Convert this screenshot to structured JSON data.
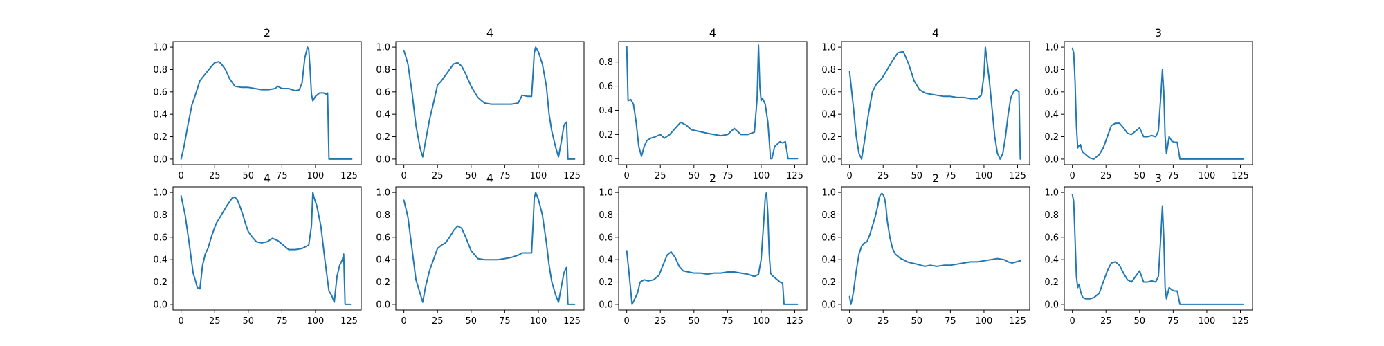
{
  "figure": {
    "background": "#ffffff",
    "line_color": "#1f77b4"
  },
  "chart_data": [
    {
      "type": "line",
      "title": "2",
      "xlim": [
        -6,
        134
      ],
      "ylim": [
        -0.05,
        1.05
      ],
      "xticks": [
        0,
        25,
        50,
        75,
        100,
        125
      ],
      "yticks": [
        0.0,
        0.2,
        0.4,
        0.6,
        0.8,
        1.0
      ],
      "x": [
        0,
        2,
        5,
        8,
        10,
        14,
        18,
        22,
        25,
        28,
        30,
        33,
        36,
        40,
        45,
        50,
        55,
        60,
        65,
        70,
        72,
        75,
        80,
        85,
        88,
        90,
        92,
        94,
        95,
        96,
        97,
        98,
        100,
        103,
        106,
        108,
        109,
        110,
        115,
        120,
        125,
        127
      ],
      "y": [
        0.0,
        0.1,
        0.3,
        0.48,
        0.55,
        0.7,
        0.76,
        0.82,
        0.86,
        0.87,
        0.85,
        0.8,
        0.72,
        0.65,
        0.64,
        0.64,
        0.63,
        0.62,
        0.62,
        0.63,
        0.65,
        0.63,
        0.63,
        0.61,
        0.62,
        0.68,
        0.9,
        1.0,
        0.98,
        0.8,
        0.58,
        0.52,
        0.56,
        0.59,
        0.59,
        0.58,
        0.59,
        0.0,
        0.0,
        0.0,
        0.0,
        0.0
      ]
    },
    {
      "type": "line",
      "title": "4",
      "xlim": [
        -6,
        134
      ],
      "ylim": [
        -0.05,
        1.05
      ],
      "xticks": [
        0,
        25,
        50,
        75,
        100,
        125
      ],
      "yticks": [
        0.0,
        0.2,
        0.4,
        0.6,
        0.8,
        1.0
      ],
      "x": [
        0,
        3,
        6,
        9,
        12,
        14,
        16,
        19,
        22,
        25,
        28,
        31,
        34,
        37,
        40,
        43,
        46,
        50,
        55,
        60,
        65,
        70,
        75,
        80,
        85,
        88,
        92,
        95,
        96,
        97,
        98,
        100,
        103,
        106,
        108,
        110,
        113,
        115,
        117,
        119,
        120,
        121,
        122,
        123,
        125,
        127
      ],
      "y": [
        0.97,
        0.85,
        0.6,
        0.3,
        0.1,
        0.02,
        0.15,
        0.35,
        0.5,
        0.66,
        0.7,
        0.75,
        0.8,
        0.85,
        0.86,
        0.83,
        0.76,
        0.65,
        0.55,
        0.5,
        0.49,
        0.49,
        0.49,
        0.49,
        0.5,
        0.57,
        0.56,
        0.56,
        0.75,
        0.95,
        1.0,
        0.96,
        0.85,
        0.65,
        0.4,
        0.25,
        0.1,
        0.02,
        0.15,
        0.3,
        0.32,
        0.33,
        0.0,
        0.0,
        0.0,
        0.0
      ]
    },
    {
      "type": "line",
      "title": "4",
      "xlim": [
        -6,
        134
      ],
      "ylim": [
        -0.05,
        0.97
      ],
      "xticks": [
        0,
        25,
        50,
        75,
        100,
        125
      ],
      "yticks": [
        0.0,
        0.2,
        0.4,
        0.6,
        0.8
      ],
      "x": [
        0,
        1,
        3,
        5,
        7,
        9,
        11,
        13,
        15,
        18,
        21,
        25,
        28,
        32,
        36,
        40,
        44,
        48,
        52,
        56,
        60,
        65,
        70,
        75,
        80,
        85,
        90,
        95,
        97,
        98,
        99,
        100,
        101,
        103,
        105,
        107,
        108,
        110,
        112,
        114,
        116,
        118,
        120,
        122,
        125,
        127
      ],
      "y": [
        0.93,
        0.48,
        0.49,
        0.45,
        0.3,
        0.1,
        0.02,
        0.1,
        0.15,
        0.17,
        0.18,
        0.2,
        0.17,
        0.2,
        0.25,
        0.3,
        0.28,
        0.24,
        0.23,
        0.22,
        0.21,
        0.2,
        0.19,
        0.2,
        0.25,
        0.2,
        0.2,
        0.22,
        0.5,
        0.94,
        0.6,
        0.48,
        0.5,
        0.45,
        0.3,
        0.0,
        0.0,
        0.1,
        0.12,
        0.14,
        0.13,
        0.14,
        0.0,
        0.0,
        0.0,
        0.0
      ]
    },
    {
      "type": "line",
      "title": "4",
      "xlim": [
        -6,
        134
      ],
      "ylim": [
        -0.05,
        1.05
      ],
      "xticks": [
        0,
        25,
        50,
        75,
        100,
        125
      ],
      "yticks": [
        0.0,
        0.2,
        0.4,
        0.6,
        0.8,
        1.0
      ],
      "x": [
        0,
        3,
        5,
        7,
        9,
        11,
        14,
        17,
        20,
        24,
        28,
        32,
        36,
        40,
        44,
        48,
        52,
        56,
        60,
        65,
        70,
        75,
        80,
        85,
        90,
        95,
        98,
        100,
        101,
        102,
        104,
        106,
        108,
        110,
        112,
        114,
        116,
        118,
        120,
        122,
        124,
        126,
        127
      ],
      "y": [
        0.78,
        0.45,
        0.2,
        0.05,
        0.0,
        0.15,
        0.4,
        0.6,
        0.67,
        0.72,
        0.8,
        0.88,
        0.95,
        0.96,
        0.85,
        0.7,
        0.62,
        0.59,
        0.58,
        0.57,
        0.56,
        0.56,
        0.55,
        0.55,
        0.54,
        0.54,
        0.57,
        0.75,
        1.0,
        0.9,
        0.7,
        0.45,
        0.2,
        0.05,
        0.0,
        0.05,
        0.2,
        0.4,
        0.55,
        0.6,
        0.62,
        0.6,
        0.0
      ]
    },
    {
      "type": "line",
      "title": "3",
      "xlim": [
        -6,
        134
      ],
      "ylim": [
        -0.05,
        1.05
      ],
      "xticks": [
        0,
        25,
        50,
        75,
        100,
        125
      ],
      "yticks": [
        0.0,
        0.2,
        0.4,
        0.6,
        0.8,
        1.0
      ],
      "x": [
        0,
        1,
        2,
        3,
        4,
        5,
        6,
        7,
        8,
        10,
        13,
        16,
        20,
        23,
        26,
        29,
        32,
        35,
        38,
        41,
        44,
        47,
        50,
        53,
        56,
        59,
        62,
        64,
        66,
        67,
        68,
        69,
        70,
        72,
        74,
        76,
        78,
        80,
        85,
        90,
        100,
        110,
        120,
        127
      ],
      "y": [
        0.99,
        0.95,
        0.7,
        0.3,
        0.1,
        0.12,
        0.13,
        0.08,
        0.06,
        0.04,
        0.01,
        0.0,
        0.04,
        0.1,
        0.2,
        0.3,
        0.32,
        0.32,
        0.28,
        0.23,
        0.22,
        0.25,
        0.28,
        0.2,
        0.2,
        0.21,
        0.2,
        0.25,
        0.6,
        0.8,
        0.6,
        0.2,
        0.05,
        0.2,
        0.16,
        0.15,
        0.15,
        0.0,
        0.0,
        0.0,
        0.0,
        0.0,
        0.0,
        0.0
      ]
    },
    {
      "type": "line",
      "title": "4",
      "xlim": [
        -6,
        134
      ],
      "ylim": [
        -0.05,
        1.05
      ],
      "xticks": [
        0,
        25,
        50,
        75,
        100,
        125
      ],
      "yticks": [
        0.0,
        0.2,
        0.4,
        0.6,
        0.8,
        1.0
      ],
      "x": [
        0,
        3,
        6,
        9,
        11,
        12,
        14,
        16,
        18,
        20,
        23,
        26,
        30,
        34,
        38,
        40,
        42,
        44,
        46,
        48,
        50,
        53,
        56,
        60,
        64,
        68,
        72,
        76,
        80,
        85,
        90,
        95,
        97,
        98,
        99,
        101,
        104,
        107,
        110,
        112,
        114,
        116,
        118,
        120,
        121,
        122,
        124,
        126
      ],
      "y": [
        0.97,
        0.8,
        0.55,
        0.28,
        0.2,
        0.15,
        0.14,
        0.35,
        0.45,
        0.5,
        0.62,
        0.72,
        0.8,
        0.88,
        0.95,
        0.96,
        0.93,
        0.87,
        0.8,
        0.72,
        0.65,
        0.6,
        0.56,
        0.55,
        0.56,
        0.59,
        0.57,
        0.53,
        0.49,
        0.49,
        0.5,
        0.53,
        0.7,
        1.0,
        0.95,
        0.88,
        0.7,
        0.4,
        0.12,
        0.08,
        0.02,
        0.25,
        0.35,
        0.4,
        0.45,
        0.0,
        0.0,
        0.0
      ]
    },
    {
      "type": "line",
      "title": "4",
      "xlim": [
        -6,
        134
      ],
      "ylim": [
        -0.05,
        1.05
      ],
      "xticks": [
        0,
        25,
        50,
        75,
        100,
        125
      ],
      "yticks": [
        0.0,
        0.2,
        0.4,
        0.6,
        0.8,
        1.0
      ],
      "x": [
        0,
        3,
        6,
        9,
        12,
        14,
        16,
        19,
        22,
        25,
        28,
        31,
        34,
        37,
        40,
        43,
        46,
        50,
        55,
        60,
        65,
        70,
        75,
        80,
        85,
        88,
        92,
        95,
        96,
        97,
        98,
        100,
        103,
        106,
        108,
        110,
        113,
        115,
        117,
        119,
        120,
        121,
        122,
        123,
        125,
        127
      ],
      "y": [
        0.93,
        0.78,
        0.5,
        0.22,
        0.1,
        0.02,
        0.15,
        0.3,
        0.4,
        0.5,
        0.53,
        0.55,
        0.6,
        0.66,
        0.7,
        0.68,
        0.6,
        0.48,
        0.41,
        0.4,
        0.4,
        0.4,
        0.41,
        0.42,
        0.44,
        0.46,
        0.46,
        0.46,
        0.7,
        0.95,
        1.0,
        0.94,
        0.8,
        0.55,
        0.35,
        0.2,
        0.08,
        0.02,
        0.15,
        0.28,
        0.31,
        0.33,
        0.0,
        0.0,
        0.0,
        0.0
      ]
    },
    {
      "type": "line",
      "title": "2",
      "xlim": [
        -6,
        134
      ],
      "ylim": [
        -0.05,
        1.05
      ],
      "xticks": [
        0,
        25,
        50,
        75,
        100,
        125
      ],
      "yticks": [
        0.0,
        0.2,
        0.4,
        0.6,
        0.8,
        1.0
      ],
      "x": [
        0,
        2,
        4,
        6,
        8,
        10,
        13,
        16,
        20,
        24,
        27,
        30,
        33,
        36,
        39,
        42,
        46,
        50,
        55,
        60,
        65,
        70,
        75,
        80,
        85,
        90,
        95,
        98,
        100,
        102,
        103,
        104,
        105,
        106,
        107,
        108,
        110,
        112,
        114,
        116,
        117,
        118,
        120,
        122,
        125,
        127
      ],
      "y": [
        0.48,
        0.25,
        0.0,
        0.05,
        0.1,
        0.2,
        0.22,
        0.21,
        0.22,
        0.26,
        0.35,
        0.44,
        0.47,
        0.42,
        0.34,
        0.3,
        0.29,
        0.28,
        0.28,
        0.27,
        0.28,
        0.28,
        0.29,
        0.29,
        0.28,
        0.27,
        0.25,
        0.27,
        0.4,
        0.75,
        0.95,
        1.0,
        0.8,
        0.45,
        0.28,
        0.26,
        0.24,
        0.22,
        0.2,
        0.19,
        0.0,
        0.0,
        0.0,
        0.0,
        0.0,
        0.0
      ]
    },
    {
      "type": "line",
      "title": "2",
      "xlim": [
        -6,
        134
      ],
      "ylim": [
        -0.05,
        1.05
      ],
      "xticks": [
        0,
        25,
        50,
        75,
        100,
        125
      ],
      "yticks": [
        0.0,
        0.2,
        0.4,
        0.6,
        0.8,
        1.0
      ],
      "x": [
        0,
        1,
        2,
        3,
        5,
        7,
        9,
        11,
        13,
        15,
        17,
        19,
        21,
        22,
        23,
        24,
        25,
        26,
        27,
        28,
        30,
        32,
        34,
        36,
        38,
        40,
        43,
        46,
        50,
        53,
        56,
        60,
        65,
        70,
        75,
        80,
        85,
        90,
        95,
        100,
        105,
        110,
        115,
        118,
        121,
        124,
        127
      ],
      "y": [
        0.07,
        0.0,
        0.05,
        0.12,
        0.3,
        0.45,
        0.52,
        0.55,
        0.56,
        0.62,
        0.7,
        0.78,
        0.88,
        0.95,
        0.98,
        0.99,
        0.98,
        0.95,
        0.88,
        0.75,
        0.6,
        0.5,
        0.45,
        0.43,
        0.41,
        0.4,
        0.38,
        0.37,
        0.36,
        0.35,
        0.34,
        0.35,
        0.34,
        0.35,
        0.35,
        0.36,
        0.37,
        0.38,
        0.38,
        0.39,
        0.4,
        0.41,
        0.4,
        0.38,
        0.37,
        0.38,
        0.39
      ]
    },
    {
      "type": "line",
      "title": "3",
      "xlim": [
        -6,
        134
      ],
      "ylim": [
        -0.05,
        1.05
      ],
      "xticks": [
        0,
        25,
        50,
        75,
        100,
        125
      ],
      "yticks": [
        0.0,
        0.2,
        0.4,
        0.6,
        0.8,
        1.0
      ],
      "x": [
        0,
        1,
        2,
        3,
        4,
        5,
        6,
        7,
        8,
        10,
        13,
        16,
        20,
        23,
        26,
        29,
        32,
        35,
        38,
        41,
        44,
        47,
        50,
        53,
        56,
        59,
        62,
        64,
        66,
        67,
        68,
        69,
        70,
        72,
        74,
        76,
        78,
        80,
        85,
        90,
        100,
        110,
        120,
        127
      ],
      "y": [
        0.98,
        0.92,
        0.6,
        0.25,
        0.15,
        0.18,
        0.12,
        0.08,
        0.06,
        0.05,
        0.05,
        0.06,
        0.1,
        0.2,
        0.3,
        0.37,
        0.38,
        0.35,
        0.28,
        0.22,
        0.2,
        0.25,
        0.3,
        0.2,
        0.2,
        0.21,
        0.2,
        0.25,
        0.65,
        0.88,
        0.6,
        0.15,
        0.05,
        0.15,
        0.13,
        0.12,
        0.12,
        0.0,
        0.0,
        0.0,
        0.0,
        0.0,
        0.0,
        0.0
      ]
    }
  ]
}
